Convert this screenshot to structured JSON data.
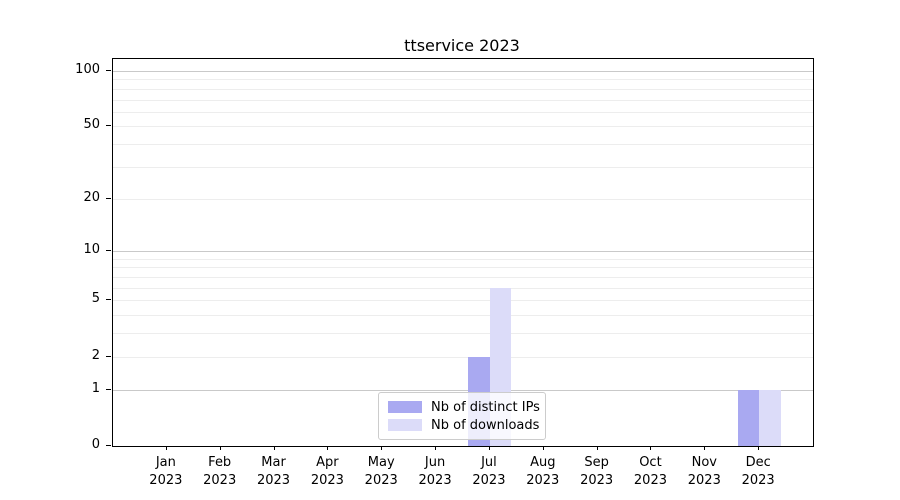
{
  "chart_data": {
    "type": "bar",
    "title": "ttservice 2023",
    "categories": [
      "Jan",
      "Feb",
      "Mar",
      "Apr",
      "May",
      "Jun",
      "Jul",
      "Aug",
      "Sep",
      "Oct",
      "Nov",
      "Dec"
    ],
    "category_year": "2023",
    "series": [
      {
        "name": "Nb of distinct IPs",
        "color": "#a9a9f1",
        "values": [
          0,
          0,
          0,
          0,
          0,
          0,
          2,
          0,
          0,
          0,
          0,
          1
        ]
      },
      {
        "name": "Nb of downloads",
        "color": "#dcdcf9",
        "values": [
          0,
          0,
          0,
          0,
          0,
          0,
          6,
          0,
          0,
          0,
          0,
          1
        ]
      }
    ],
    "xlabel": "",
    "ylabel": "",
    "y_scale": "log1p",
    "ylim": [
      0,
      115
    ],
    "y_ticks": [
      0,
      1,
      2,
      5,
      10,
      20,
      50,
      100
    ],
    "grid": {
      "on": true,
      "major_values": [
        1,
        10,
        100
      ],
      "minor_values": [
        2,
        3,
        4,
        5,
        6,
        7,
        8,
        9,
        20,
        30,
        40,
        50,
        60,
        70,
        80,
        90
      ],
      "major_color": "#c9c9c9",
      "minor_color": "#ededed"
    },
    "legend_position": "lower center",
    "colors": {
      "background": "#ffffff",
      "axis": "#000000",
      "text": "#000000"
    }
  }
}
